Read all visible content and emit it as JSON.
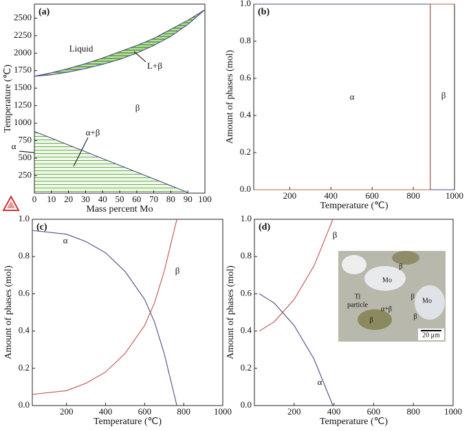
{
  "chart_data": [
    {
      "type": "line",
      "panel_label": "(a)",
      "xlabel": "Mass percent Mo",
      "ylabel": "Temperature (℃)",
      "xlim": [
        0,
        100
      ],
      "ylim": [
        0,
        2700
      ],
      "xticks": [
        0,
        10,
        20,
        30,
        40,
        50,
        60,
        70,
        80,
        90,
        100
      ],
      "yticks": [
        250,
        500,
        750,
        1000,
        1250,
        1500,
        1750,
        2000,
        2250,
        2500
      ],
      "series": [
        {
          "color": "#4a4a8a",
          "x": [
            0,
            10,
            20,
            30,
            40,
            50,
            60,
            70,
            80,
            90,
            100
          ],
          "values": [
            1670,
            1720,
            1780,
            1850,
            1930,
            2020,
            2110,
            2210,
            2340,
            2470,
            2620
          ]
        },
        {
          "color": "#4a4a8a",
          "x": [
            0,
            10,
            20,
            30,
            40,
            50,
            60,
            70,
            80,
            90,
            100
          ],
          "values": [
            1670,
            1690,
            1730,
            1780,
            1840,
            1910,
            2000,
            2110,
            2240,
            2410,
            2620
          ]
        },
        {
          "color": "#4a4a8a",
          "x": [
            0,
            90
          ],
          "values": [
            882,
            10
          ]
        }
      ],
      "annotations": [
        "Liquid",
        "L+β",
        "β",
        "α+β",
        "α"
      ]
    },
    {
      "type": "line",
      "panel_label": "(b)",
      "xlabel": "Temperature (℃)",
      "ylabel": "Amount of phases (mol)",
      "xlim": [
        25,
        1000
      ],
      "ylim": [
        0,
        1
      ],
      "xticks": [
        200,
        400,
        600,
        800,
        1000
      ],
      "yticks": [
        {
          "value": 0,
          "label": "0.0"
        },
        0.2,
        0.4,
        0.6,
        0.8,
        {
          "value": 1,
          "label": "1.0"
        }
      ],
      "series": [
        {
          "name": "α",
          "color": "#4a4a8a",
          "x": [
            25,
            882,
            882,
            1000
          ],
          "values": [
            1,
            1,
            0,
            0
          ]
        },
        {
          "name": "β",
          "color": "#b5604a",
          "x": [
            25,
            882,
            882,
            1000
          ],
          "values": [
            0,
            0,
            1,
            1
          ]
        }
      ]
    },
    {
      "type": "line",
      "panel_label": "(c)",
      "xlabel": "Temperature (℃)",
      "ylabel": "Amount of phases (mol)",
      "xlim": [
        25,
        1000
      ],
      "ylim": [
        0,
        1
      ],
      "xticks": [
        200,
        400,
        600,
        800,
        1000
      ],
      "yticks": [
        {
          "value": 0,
          "label": "0.0"
        },
        0.2,
        0.4,
        0.6,
        0.8,
        {
          "value": 1,
          "label": "1.0"
        }
      ],
      "series": [
        {
          "name": "α",
          "color": "#4a4a8a",
          "x": [
            25,
            200,
            300,
            400,
            500,
            600,
            650,
            700,
            765
          ],
          "values": [
            0.94,
            0.92,
            0.88,
            0.82,
            0.72,
            0.57,
            0.45,
            0.28,
            0
          ]
        },
        {
          "name": "β",
          "color": "#c0504d",
          "x": [
            25,
            200,
            300,
            400,
            500,
            600,
            650,
            700,
            765
          ],
          "values": [
            0.06,
            0.08,
            0.12,
            0.18,
            0.28,
            0.43,
            0.55,
            0.72,
            1
          ]
        }
      ]
    },
    {
      "type": "line",
      "panel_label": "(d)",
      "xlabel": "Temperature (℃)",
      "ylabel": "Amount of phases (mol)",
      "xlim": [
        0,
        1000
      ],
      "ylim": [
        0,
        1
      ],
      "xticks": [
        200,
        400,
        600,
        800,
        1000
      ],
      "yticks": [
        {
          "value": 0,
          "label": "0.0"
        },
        0.2,
        0.4,
        0.6,
        0.8,
        {
          "value": 1,
          "label": "1.0"
        }
      ],
      "series": [
        {
          "name": "α",
          "color": "#4a4a8a",
          "x": [
            25,
            100,
            200,
            300,
            395
          ],
          "values": [
            0.6,
            0.55,
            0.43,
            0.25,
            0
          ]
        },
        {
          "name": "β",
          "color": "#c0504d",
          "x": [
            25,
            100,
            200,
            300,
            395
          ],
          "values": [
            0.4,
            0.45,
            0.57,
            0.75,
            1
          ]
        }
      ],
      "annotations": [
        "Mo",
        "Mo",
        "β",
        "β",
        "β",
        "β",
        "Ti",
        "particle",
        "α+β",
        "20 μm"
      ]
    }
  ]
}
